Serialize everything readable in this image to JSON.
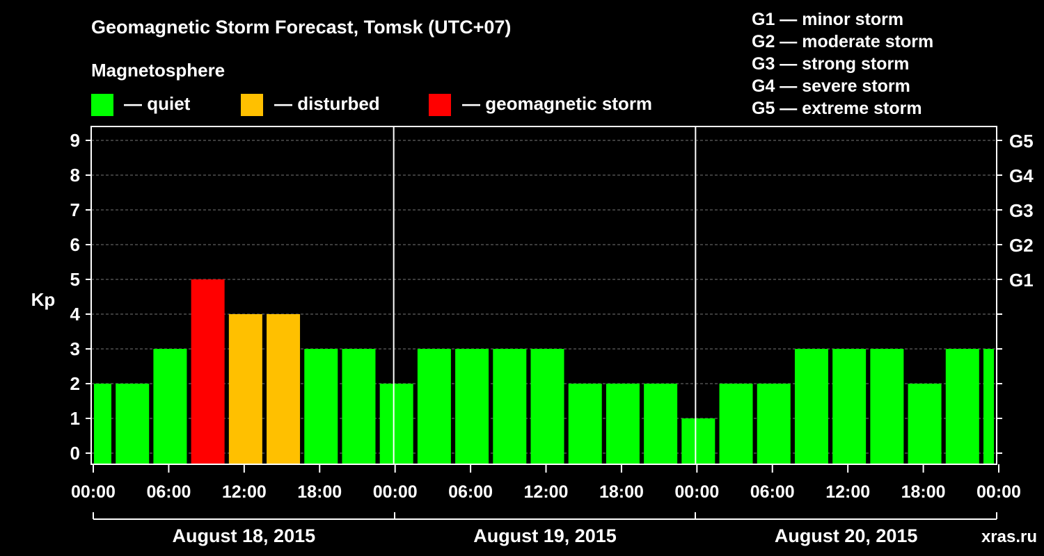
{
  "title": "Geomagnetic Storm Forecast, Tomsk (UTC+07)",
  "subtitle": "Magnetosphere",
  "legend": [
    {
      "label": "— quiet",
      "color": "#00ff00"
    },
    {
      "label": "— disturbed",
      "color": "#ffc000"
    },
    {
      "label": "— geomagnetic storm",
      "color": "#ff0000"
    }
  ],
  "storm_scale": [
    "G1 — minor storm",
    "G2 — moderate storm",
    "G3 — strong storm",
    "G4 — severe storm",
    "G5 — extreme storm"
  ],
  "watermark": "xras.ru",
  "chart_data": {
    "type": "bar",
    "ylabel": "Kp",
    "ylim": [
      0,
      9
    ],
    "yticks": [
      "0",
      "1",
      "2",
      "3",
      "4",
      "5",
      "6",
      "7",
      "8",
      "9"
    ],
    "right_axis_labels": [
      {
        "kp": 5,
        "label": "G1"
      },
      {
        "kp": 6,
        "label": "G2"
      },
      {
        "kp": 7,
        "label": "G3"
      },
      {
        "kp": 8,
        "label": "G4"
      },
      {
        "kp": 9,
        "label": "G5"
      }
    ],
    "x_tick_labels": [
      "00:00",
      "06:00",
      "12:00",
      "18:00",
      "00:00",
      "06:00",
      "12:00",
      "18:00",
      "00:00",
      "06:00",
      "12:00",
      "18:00",
      "00:00"
    ],
    "days": [
      "August 18, 2015",
      "August 19, 2015",
      "August 20, 2015"
    ],
    "grid": "dashed horizontal lines at each Kp level",
    "colors": {
      "quiet": "#00ff00",
      "disturbed": "#ffc000",
      "storm": "#ff0000"
    },
    "values": [
      2,
      2,
      3,
      5,
      4,
      4,
      3,
      3,
      2,
      3,
      3,
      3,
      3,
      2,
      2,
      2,
      1,
      2,
      2,
      3,
      3,
      3,
      2,
      3,
      3
    ]
  }
}
